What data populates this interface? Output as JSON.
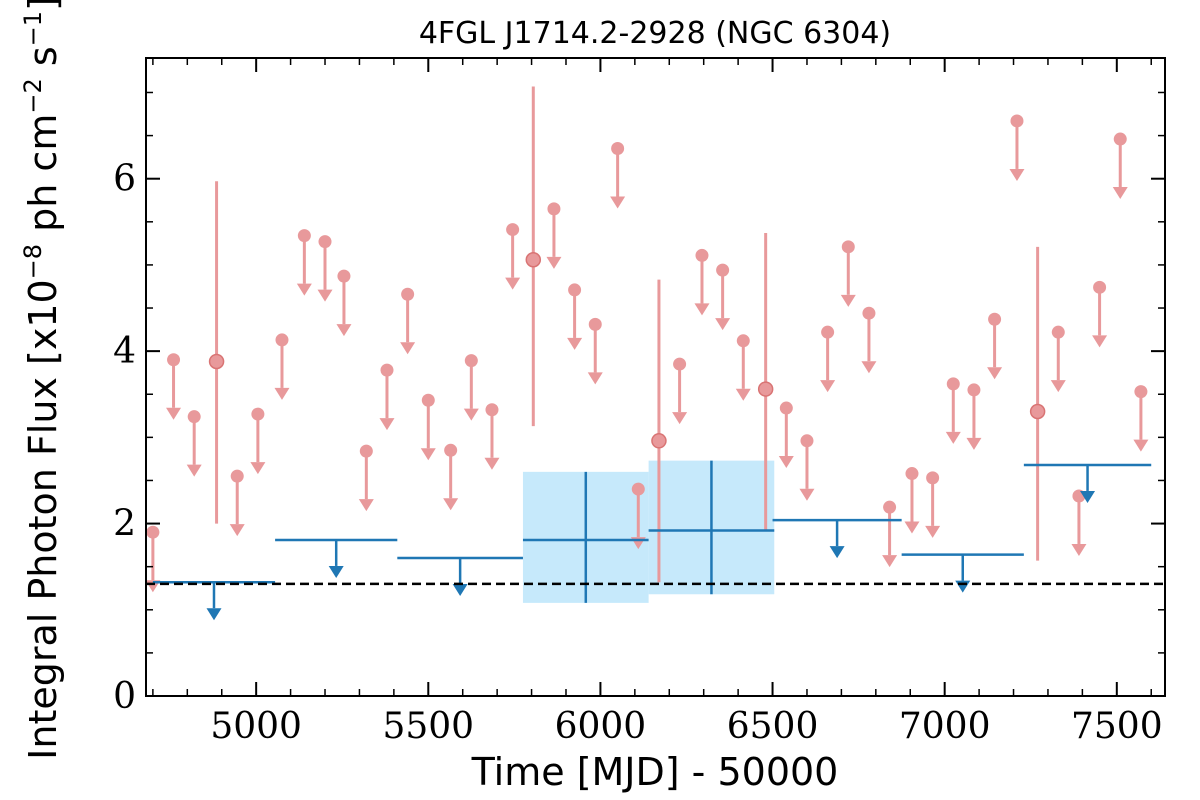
{
  "chart_data": {
    "type": "scatter",
    "title": "4FGL J1714.2-2928 (NGC 6304)",
    "xlabel": "Time [MJD] - 50000",
    "ylabel": "Integral Photon Flux [x10^-8 ph cm^-2 s^-1]",
    "ylabel_parts": {
      "base": "Integral Photon Flux [x10",
      "exp1": "−8",
      "mid": " ph cm",
      "exp2": "−2",
      "mid2": " s",
      "exp3": "−1",
      "end": "]"
    },
    "xlim": [
      4680,
      7640
    ],
    "ylim": [
      0,
      7.4
    ],
    "xticks": [
      5000,
      5500,
      6000,
      6500,
      7000,
      7500
    ],
    "yticks": [
      0,
      2,
      4,
      6
    ],
    "grid": false,
    "reference_line": {
      "y": 1.3,
      "style": "dashed",
      "color": "#000000"
    },
    "colors": {
      "short_bins": "#e8999b",
      "long_bins": "#1f77b4",
      "long_bins_band": "#c6e9fb"
    },
    "series": [
      {
        "kind": "short_bins",
        "upper_limits": [
          {
            "x": 4700,
            "y": 1.9
          },
          {
            "x": 4760,
            "y": 3.9
          },
          {
            "x": 4820,
            "y": 3.24
          },
          {
            "x": 4945,
            "y": 2.55
          },
          {
            "x": 5005,
            "y": 3.27
          },
          {
            "x": 5075,
            "y": 4.13
          },
          {
            "x": 5140,
            "y": 5.34
          },
          {
            "x": 5200,
            "y": 5.27
          },
          {
            "x": 5255,
            "y": 4.87
          },
          {
            "x": 5320,
            "y": 2.84
          },
          {
            "x": 5380,
            "y": 3.78
          },
          {
            "x": 5440,
            "y": 4.66
          },
          {
            "x": 5500,
            "y": 3.43
          },
          {
            "x": 5565,
            "y": 2.85
          },
          {
            "x": 5625,
            "y": 3.89
          },
          {
            "x": 5685,
            "y": 3.32
          },
          {
            "x": 5745,
            "y": 5.41
          },
          {
            "x": 5865,
            "y": 5.65
          },
          {
            "x": 5925,
            "y": 4.71
          },
          {
            "x": 5985,
            "y": 4.31
          },
          {
            "x": 6050,
            "y": 6.35
          },
          {
            "x": 6110,
            "y": 2.4
          },
          {
            "x": 6230,
            "y": 3.85
          },
          {
            "x": 6295,
            "y": 5.11
          },
          {
            "x": 6355,
            "y": 4.94
          },
          {
            "x": 6415,
            "y": 4.12
          },
          {
            "x": 6540,
            "y": 3.34
          },
          {
            "x": 6600,
            "y": 2.96
          },
          {
            "x": 6660,
            "y": 4.22
          },
          {
            "x": 6720,
            "y": 5.21
          },
          {
            "x": 6780,
            "y": 4.44
          },
          {
            "x": 6840,
            "y": 2.19
          },
          {
            "x": 6905,
            "y": 2.58
          },
          {
            "x": 6965,
            "y": 2.53
          },
          {
            "x": 7025,
            "y": 3.62
          },
          {
            "x": 7085,
            "y": 3.55
          },
          {
            "x": 7145,
            "y": 4.37
          },
          {
            "x": 7210,
            "y": 6.67
          },
          {
            "x": 7330,
            "y": 4.22
          },
          {
            "x": 7390,
            "y": 2.32
          },
          {
            "x": 7450,
            "y": 4.74
          },
          {
            "x": 7510,
            "y": 6.46
          },
          {
            "x": 7570,
            "y": 3.53
          }
        ],
        "detections": [
          {
            "x": 4885,
            "y": 3.88,
            "low": 2.0,
            "high": 5.97
          },
          {
            "x": 5805,
            "y": 5.06,
            "low": 3.13,
            "high": 7.07
          },
          {
            "x": 6170,
            "y": 2.96,
            "low": 1.32,
            "high": 4.83
          },
          {
            "x": 6480,
            "y": 3.56,
            "low": 1.91,
            "high": 5.37
          },
          {
            "x": 7270,
            "y": 3.3,
            "low": 1.57,
            "high": 5.21
          }
        ]
      },
      {
        "kind": "long_bins",
        "upper_limits": [
          {
            "x0": 4700,
            "x1": 5055,
            "y": 1.32
          },
          {
            "x0": 5055,
            "x1": 5410,
            "y": 1.81
          },
          {
            "x0": 5410,
            "x1": 5775,
            "y": 1.6
          },
          {
            "x0": 6500,
            "x1": 6875,
            "y": 2.04
          },
          {
            "x0": 6875,
            "x1": 7230,
            "y": 1.64
          },
          {
            "x0": 7230,
            "x1": 7600,
            "y": 2.68
          }
        ],
        "detections": [
          {
            "x0": 5775,
            "x1": 6140,
            "y": 1.81,
            "low": 1.08,
            "high": 2.6
          },
          {
            "x0": 6140,
            "x1": 6505,
            "y": 1.92,
            "low": 1.18,
            "high": 2.73
          }
        ]
      }
    ]
  }
}
